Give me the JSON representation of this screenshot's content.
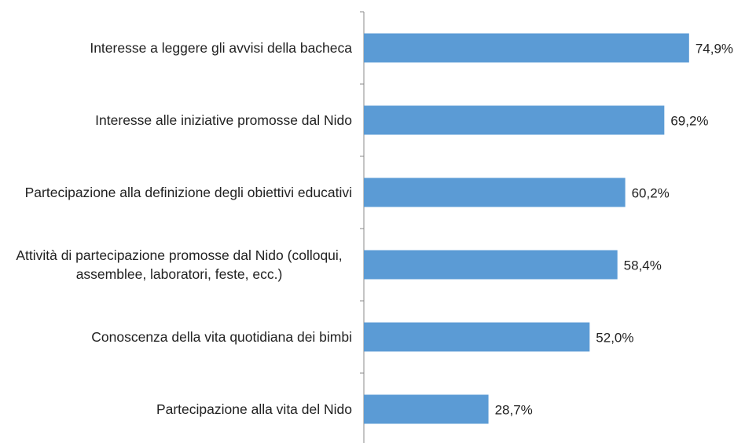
{
  "chart_data": {
    "type": "hbar",
    "categories": [
      "Interesse a leggere gli avvisi della bacheca",
      "Interesse alle iniziative promosse dal Nido",
      "Partecipazione alla definizione degli obiettivi educativi",
      "Attività di partecipazione promosse dal Nido (colloqui, assemblee, laboratori, feste, ecc.)",
      "Conoscenza della vita quotidiana dei bimbi",
      "Partecipazione alla vita del Nido"
    ],
    "values": [
      74.9,
      69.2,
      60.2,
      58.4,
      52.0,
      28.7
    ],
    "value_labels": [
      "74,9%",
      "69,2%",
      "60,2%",
      "58,4%",
      "52,0%",
      "28,7%"
    ],
    "color": "#5b9bd5",
    "xlim": [
      0,
      80
    ]
  }
}
